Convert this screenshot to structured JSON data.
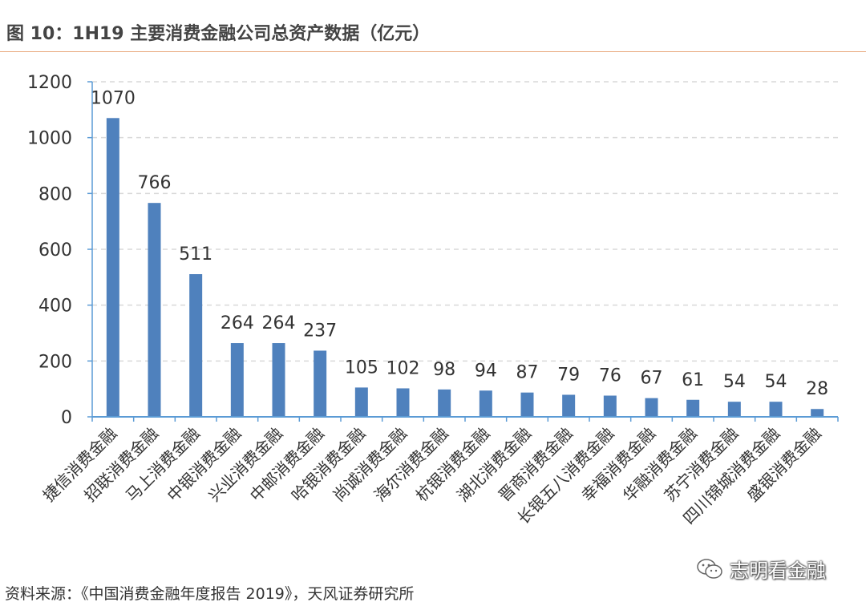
{
  "header": {
    "title": "图 10：1H19 主要消费金融公司总资产数据（亿元）"
  },
  "chart_data": {
    "type": "bar",
    "categories": [
      "捷信消费金融",
      "招联消费金融",
      "马上消费金融",
      "中银消费金融",
      "兴业消费金融",
      "中邮消费金融",
      "哈银消费金融",
      "尚诚消费金融",
      "海尔消费金融",
      "杭银消费金融",
      "湖北消费金融",
      "晋商消费金融",
      "长银五八消费金融",
      "幸福消费金融",
      "华融消费金融",
      "苏宁消费金融",
      "四川锦城消费金融",
      "盛银消费金融"
    ],
    "values": [
      1070,
      766,
      511,
      264,
      264,
      237,
      105,
      102,
      98,
      94,
      87,
      79,
      76,
      67,
      61,
      54,
      54,
      28
    ],
    "ylim": [
      0,
      1200
    ],
    "yticks": [
      0,
      200,
      400,
      600,
      800,
      1000,
      1200
    ],
    "grid": true,
    "bar_color": "#4f81bd",
    "axis_color": "#5b9bd5"
  },
  "footer": {
    "source": "资料来源：《中国消费金融年度报告 2019》，天风证券研究所"
  },
  "watermark": {
    "text": "志明看金融",
    "icon": "wechat-icon"
  }
}
